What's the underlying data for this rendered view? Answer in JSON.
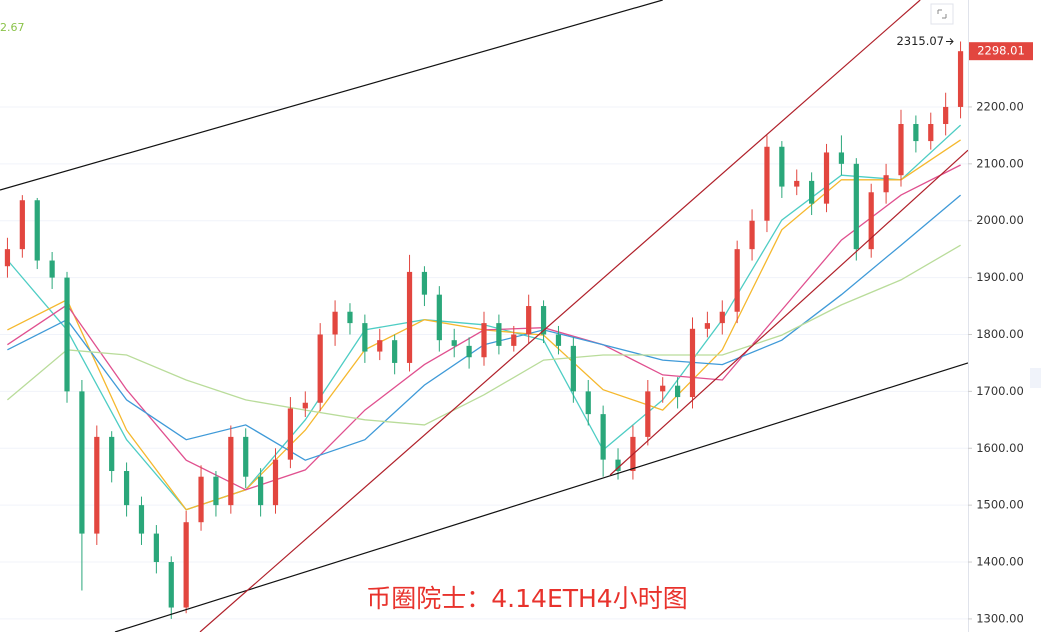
{
  "chart_data": {
    "type": "candlestick",
    "title": "币圈院士：4.14ETH4小时图",
    "indicator_label": "2.67",
    "up_color": "#e2463f",
    "down_color": "#2aa77a",
    "xlim": [
      -0.5,
      64.5
    ],
    "ylim": [
      1277,
      2388
    ],
    "yticks": [
      {
        "value": 1300,
        "label": "1300.00"
      },
      {
        "value": 1400,
        "label": "1400.00"
      },
      {
        "value": 1500,
        "label": "1500.00"
      },
      {
        "value": 1600,
        "label": "1600.00"
      },
      {
        "value": 1700,
        "label": "1700.00"
      },
      {
        "value": 1800,
        "label": "1800.00"
      },
      {
        "value": 1900,
        "label": "1900.00"
      },
      {
        "value": 2000,
        "label": "2000.00"
      },
      {
        "value": 2100,
        "label": "2100.00"
      },
      {
        "value": 2200,
        "label": "2200.00"
      }
    ],
    "grid": true,
    "x": [
      0,
      1,
      2,
      3,
      4,
      5,
      6,
      7,
      8,
      9,
      10,
      11,
      12,
      13,
      14,
      15,
      16,
      17,
      18,
      19,
      20,
      21,
      22,
      23,
      24,
      25,
      26,
      27,
      28,
      29,
      30,
      31,
      32,
      33,
      34,
      35,
      36,
      37,
      38,
      39,
      40,
      41,
      42,
      43,
      44,
      45,
      46,
      47,
      48,
      49,
      50,
      51,
      52,
      53,
      54,
      55,
      56,
      57,
      58,
      59,
      60,
      61,
      62,
      63,
      64
    ],
    "open": [
      1920,
      1950,
      2036,
      1930,
      1900,
      1700,
      1450,
      1620,
      1560,
      1500,
      1450,
      1400,
      1320,
      1470,
      1550,
      1500,
      1620,
      1550,
      1500,
      1580,
      1670,
      1680,
      1800,
      1840,
      1820,
      1770,
      1790,
      1750,
      1910,
      1870,
      1790,
      1780,
      1760,
      1820,
      1780,
      1800,
      1850,
      1800,
      1780,
      1700,
      1660,
      1580,
      1560,
      1620,
      1700,
      1710,
      1690,
      1810,
      1820,
      1840,
      1950,
      2000,
      2130,
      2060,
      2070,
      2030,
      2120,
      2100,
      1950,
      2050,
      2080,
      2170,
      2140,
      2170,
      2200
    ],
    "high": [
      1970,
      2045,
      2040,
      1945,
      1910,
      1720,
      1640,
      1630,
      1575,
      1515,
      1465,
      1410,
      1490,
      1570,
      1560,
      1640,
      1635,
      1565,
      1600,
      1690,
      1700,
      1820,
      1860,
      1855,
      1835,
      1810,
      1800,
      1940,
      1920,
      1885,
      1810,
      1795,
      1840,
      1835,
      1815,
      1870,
      1860,
      1815,
      1795,
      1720,
      1675,
      1600,
      1640,
      1720,
      1725,
      1725,
      1830,
      1840,
      1860,
      1965,
      2020,
      2150,
      2140,
      2090,
      2085,
      2135,
      2150,
      2110,
      2065,
      2100,
      2195,
      2185,
      2190,
      2225,
      2315.07
    ],
    "low": [
      1900,
      1935,
      1915,
      1880,
      1680,
      1350,
      1430,
      1540,
      1480,
      1430,
      1380,
      1300,
      1310,
      1455,
      1480,
      1485,
      1530,
      1480,
      1485,
      1565,
      1655,
      1665,
      1780,
      1800,
      1750,
      1755,
      1730,
      1735,
      1850,
      1770,
      1760,
      1740,
      1745,
      1765,
      1770,
      1785,
      1785,
      1765,
      1680,
      1640,
      1550,
      1545,
      1545,
      1605,
      1680,
      1670,
      1670,
      1795,
      1800,
      1820,
      1930,
      1980,
      2040,
      2045,
      2010,
      2015,
      2080,
      1930,
      1935,
      2030,
      2060,
      2120,
      2125,
      2150,
      2180
    ],
    "close": [
      1950,
      2036,
      1930,
      1900,
      1700,
      1450,
      1620,
      1560,
      1500,
      1450,
      1400,
      1320,
      1470,
      1550,
      1500,
      1620,
      1550,
      1500,
      1580,
      1670,
      1680,
      1800,
      1840,
      1820,
      1770,
      1790,
      1750,
      1910,
      1870,
      1790,
      1780,
      1760,
      1820,
      1780,
      1800,
      1850,
      1800,
      1780,
      1700,
      1660,
      1580,
      1560,
      1620,
      1700,
      1710,
      1690,
      1810,
      1820,
      1840,
      1950,
      2000,
      2130,
      2060,
      2070,
      2030,
      2120,
      2100,
      1950,
      2050,
      2080,
      2170,
      2140,
      2170,
      2200,
      2298.01
    ],
    "ma_x": [
      0,
      4,
      8,
      12,
      16,
      20,
      24,
      28,
      32,
      36,
      40,
      44,
      48,
      52,
      56,
      60,
      64
    ],
    "moving_averages": [
      {
        "color": "#4ecdc4",
        "values": [
          1931,
          1808,
          1615,
          1492,
          1527,
          1650,
          1808,
          1826,
          1817,
          1790,
          1597,
          1685,
          1826,
          2001,
          2080,
          2072,
          2168
        ]
      },
      {
        "color": "#f5b82e",
        "values": [
          1808,
          1861,
          1632,
          1492,
          1527,
          1632,
          1773,
          1826,
          1808,
          1799,
          1703,
          1667,
          1773,
          1984,
          2072,
          2072,
          2142
        ]
      },
      {
        "color": "#e0508f",
        "values": [
          1782,
          1852,
          1703,
          1579,
          1527,
          1562,
          1667,
          1747,
          1808,
          1812,
          1782,
          1729,
          1720,
          1843,
          1966,
          2045,
          2098
        ]
      },
      {
        "color": "#3f9ad8",
        "values": [
          1773,
          1826,
          1685,
          1615,
          1641,
          1579,
          1615,
          1711,
          1782,
          1808,
          1782,
          1755,
          1747,
          1790,
          1870,
          1957,
          2045
        ]
      },
      {
        "color": "#b9dc9a",
        "values": [
          1685,
          1773,
          1764,
          1720,
          1685,
          1667,
          1650,
          1641,
          1694,
          1755,
          1764,
          1764,
          1764,
          1799,
          1852,
          1896,
          1957
        ]
      }
    ],
    "trendlines": [
      {
        "color": "#111111",
        "x": [
          -0.5,
          44.0
        ],
        "values": [
          2054,
          2388
        ]
      },
      {
        "color": "#111111",
        "x": [
          7.22,
          64.5
        ],
        "values": [
          1277,
          1750
        ]
      },
      {
        "color": "#b0202a",
        "x": [
          12.93,
          61.29
        ],
        "values": [
          1277,
          2388
        ]
      },
      {
        "color": "#b0202a",
        "x": [
          40.47,
          64.5
        ],
        "values": [
          1553,
          2124
        ]
      }
    ]
  }
}
